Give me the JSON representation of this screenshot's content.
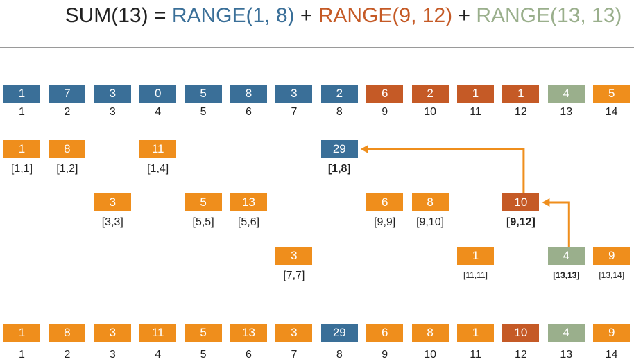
{
  "formula": {
    "prefix": "SUM(13) = ",
    "part1": "RANGE(1, 8)",
    "plus1": " + ",
    "part2": "RANGE(9, 12)",
    "plus2": " + ",
    "part3": "RANGE(13, 13)"
  },
  "colors": {
    "blue": "#3a6f98",
    "rust": "#c55a26",
    "sage": "#9aaf8c",
    "orange": "#ef8e1c",
    "text": "#222222"
  },
  "array_row": [
    {
      "value": "1",
      "index": "1",
      "color": "blue"
    },
    {
      "value": "7",
      "index": "2",
      "color": "blue"
    },
    {
      "value": "3",
      "index": "3",
      "color": "blue"
    },
    {
      "value": "0",
      "index": "4",
      "color": "blue"
    },
    {
      "value": "5",
      "index": "5",
      "color": "blue"
    },
    {
      "value": "8",
      "index": "6",
      "color": "blue"
    },
    {
      "value": "3",
      "index": "7",
      "color": "blue"
    },
    {
      "value": "2",
      "index": "8",
      "color": "blue"
    },
    {
      "value": "6",
      "index": "9",
      "color": "rust"
    },
    {
      "value": "2",
      "index": "10",
      "color": "rust"
    },
    {
      "value": "1",
      "index": "11",
      "color": "rust"
    },
    {
      "value": "1",
      "index": "12",
      "color": "rust"
    },
    {
      "value": "4",
      "index": "13",
      "color": "sage"
    },
    {
      "value": "5",
      "index": "14",
      "color": "orange"
    }
  ],
  "tree_nodes": [
    {
      "value": "1",
      "range": "[1,1]",
      "col": 1,
      "level": 1,
      "color": "orange",
      "style": "normal"
    },
    {
      "value": "8",
      "range": "[1,2]",
      "col": 2,
      "level": 1,
      "color": "orange",
      "style": "normal"
    },
    {
      "value": "11",
      "range": "[1,4]",
      "col": 4,
      "level": 1,
      "color": "orange",
      "style": "normal"
    },
    {
      "value": "29",
      "range": "[1,8]",
      "col": 8,
      "level": 1,
      "color": "blue",
      "style": "bold"
    },
    {
      "value": "3",
      "range": "[3,3]",
      "col": 3,
      "level": 2,
      "color": "orange",
      "style": "normal"
    },
    {
      "value": "5",
      "range": "[5,5]",
      "col": 5,
      "level": 2,
      "color": "orange",
      "style": "normal"
    },
    {
      "value": "13",
      "range": "[5,6]",
      "col": 6,
      "level": 2,
      "color": "orange",
      "style": "normal"
    },
    {
      "value": "6",
      "range": "[9,9]",
      "col": 9,
      "level": 2,
      "color": "orange",
      "style": "normal"
    },
    {
      "value": "8",
      "range": "[9,10]",
      "col": 10,
      "level": 2,
      "color": "orange",
      "style": "normal"
    },
    {
      "value": "10",
      "range": "[9,12]",
      "col": 12,
      "level": 2,
      "color": "rust",
      "style": "bold"
    },
    {
      "value": "3",
      "range": "[7,7]",
      "col": 7,
      "level": 3,
      "color": "orange",
      "style": "normal"
    },
    {
      "value": "1",
      "range": "[11,11]",
      "col": 11,
      "level": 3,
      "color": "orange",
      "style": "small"
    },
    {
      "value": "4",
      "range": "[13,13]",
      "col": 13,
      "level": 3,
      "color": "sage",
      "style": "small-bold"
    },
    {
      "value": "9",
      "range": "[13,14]",
      "col": 14,
      "level": 3,
      "color": "orange",
      "style": "small"
    }
  ],
  "bit_row": [
    {
      "value": "1",
      "index": "1",
      "color": "orange"
    },
    {
      "value": "8",
      "index": "2",
      "color": "orange"
    },
    {
      "value": "3",
      "index": "3",
      "color": "orange"
    },
    {
      "value": "11",
      "index": "4",
      "color": "orange"
    },
    {
      "value": "5",
      "index": "5",
      "color": "orange"
    },
    {
      "value": "13",
      "index": "6",
      "color": "orange"
    },
    {
      "value": "3",
      "index": "7",
      "color": "orange"
    },
    {
      "value": "29",
      "index": "8",
      "color": "blue"
    },
    {
      "value": "6",
      "index": "9",
      "color": "orange"
    },
    {
      "value": "8",
      "index": "10",
      "color": "orange"
    },
    {
      "value": "1",
      "index": "11",
      "color": "orange"
    },
    {
      "value": "10",
      "index": "12",
      "color": "rust"
    },
    {
      "value": "4",
      "index": "13",
      "color": "sage"
    },
    {
      "value": "9",
      "index": "14",
      "color": "orange"
    }
  ],
  "arrows": [
    {
      "from_col": 12,
      "from_level": 2,
      "to_col": 8,
      "to_level": 1
    },
    {
      "from_col": 13,
      "from_level": 3,
      "to_col": 12,
      "to_level": 2
    }
  ]
}
